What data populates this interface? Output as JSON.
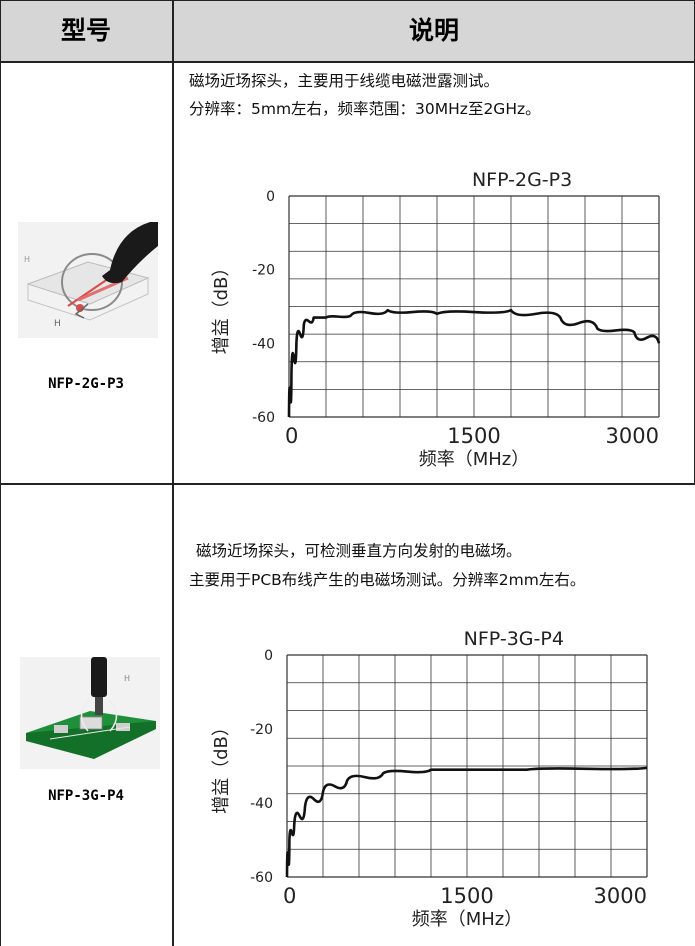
{
  "header": {
    "col1": "型号",
    "col2": "说明"
  },
  "rows": [
    {
      "model": "NFP-2G-P3",
      "desc_line1": "磁场近场探头，主要用于线缆电磁泄露测试。",
      "desc_line2": "分辨率：5mm左右，频率范围：30MHz至2GHz。",
      "photo_icon": "hand-holding-probe-icon",
      "chart_data": {
        "type": "line",
        "title": "NFP-2G-P3",
        "xlabel": "频率（MHz）",
        "ylabel": "增益（dB）",
        "xlim": [
          0,
          3000
        ],
        "ylim": [
          -60,
          0
        ],
        "x_ticks": [
          "0",
          "1500",
          "3000"
        ],
        "y_ticks": [
          "0",
          "-20",
          "-40",
          "-60"
        ],
        "grid": true,
        "series": [
          {
            "x": [
              0,
              20,
              60,
              120,
              200,
              300,
              500,
              800,
              1200,
              1800,
              2200,
              2500,
              2800,
              3000
            ],
            "y": [
              -60,
              -48,
              -40,
              -35,
              -33,
              -33,
              -32.5,
              -31,
              -32,
              -31,
              -33,
              -36,
              -37,
              -40
            ]
          }
        ]
      }
    },
    {
      "model": "NFP-3G-P4",
      "desc_line1": "磁场近场探头，可检测垂直方向发射的电磁场。",
      "desc_line2": "主要用于PCB布线产生的电磁场测试。分辨率2mm左右。",
      "photo_icon": "probe-on-pcb-icon",
      "chart_data": {
        "type": "line",
        "title": "NFP-3G-P4",
        "xlabel": "频率（MHz）",
        "ylabel": "增益（dB）",
        "xlim": [
          0,
          3000
        ],
        "ylim": [
          -60,
          0
        ],
        "x_ticks": [
          "0",
          "1500",
          "3000"
        ],
        "y_ticks": [
          "0",
          "-20",
          "-40",
          "-60"
        ],
        "grid": true,
        "series": [
          {
            "x": [
              0,
              20,
              60,
              150,
              300,
              500,
              800,
              1200,
              2000,
              3000
            ],
            "y": [
              -60,
              -50,
              -46,
              -41,
              -37,
              -34,
              -32,
              -31,
              -31,
              -30.5
            ]
          }
        ]
      }
    }
  ]
}
